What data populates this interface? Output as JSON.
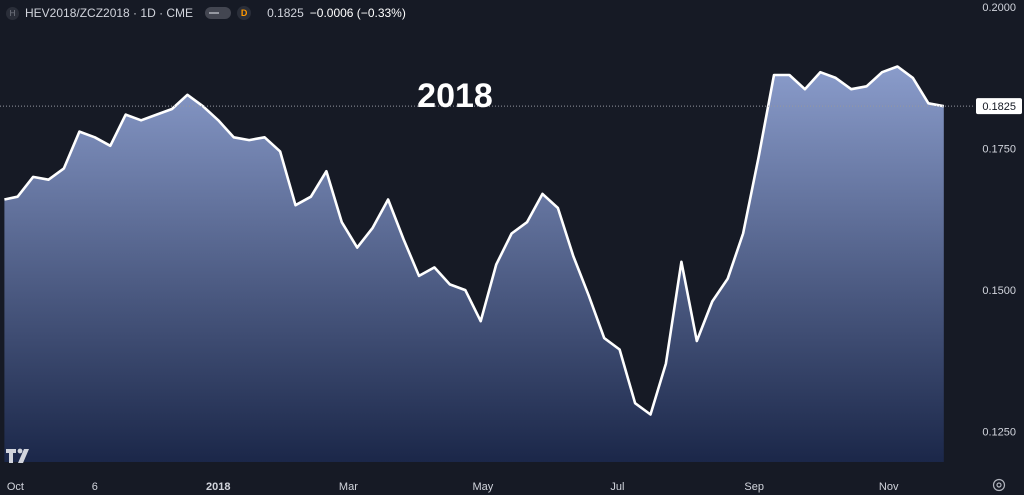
{
  "legend": {
    "symbol_icon": "H",
    "symbol": "HEV2018/ZCZ2018 · 1D · CME",
    "visibility_icon": "eye-toggle-icon",
    "badge": "D",
    "last": "0.1825",
    "change": "−0.0006 (−0.33%)"
  },
  "colors": {
    "background": "#161a25",
    "line": "#ffffff",
    "area_top": "#8a9ccb",
    "area_bottom": "#1b2749",
    "text": "#d1d4dc",
    "change_text": "#ffffff"
  },
  "chart_data": {
    "type": "area",
    "title": "2018",
    "xlabel": "",
    "ylabel": "",
    "grid": false,
    "ylim": [
      0.1235,
      0.2002
    ],
    "y_ticks": [
      "0.2000",
      "0.1750",
      "0.1500",
      "0.1250"
    ],
    "last_value_label": "0.1825",
    "x_ticks": [
      "Oct",
      "6",
      "2018",
      "Mar",
      "May",
      "Jul",
      "Sep",
      "Nov"
    ],
    "series": [
      {
        "x": [
          "2017-09-26",
          "2017-10-02",
          "2017-10-09",
          "2017-10-16",
          "2017-10-23",
          "2017-10-30",
          "2017-11-06",
          "2017-11-13",
          "2017-11-20",
          "2017-11-27",
          "2017-12-04",
          "2017-12-11",
          "2017-12-18",
          "2017-12-25",
          "2018-01-01",
          "2018-01-08",
          "2018-01-15",
          "2018-01-22",
          "2018-01-29",
          "2018-02-05",
          "2018-02-12",
          "2018-02-19",
          "2018-02-26",
          "2018-03-05",
          "2018-03-12",
          "2018-03-19",
          "2018-03-26",
          "2018-04-02",
          "2018-04-09",
          "2018-04-16",
          "2018-04-23",
          "2018-04-30",
          "2018-05-07",
          "2018-05-14",
          "2018-05-21",
          "2018-05-28",
          "2018-06-04",
          "2018-06-11",
          "2018-06-18",
          "2018-06-25",
          "2018-07-02",
          "2018-07-09",
          "2018-07-16",
          "2018-07-23",
          "2018-07-30",
          "2018-08-06",
          "2018-08-13",
          "2018-08-20",
          "2018-08-27",
          "2018-09-03",
          "2018-09-10",
          "2018-09-17",
          "2018-09-24",
          "2018-10-01",
          "2018-10-08",
          "2018-10-15",
          "2018-10-22",
          "2018-10-29",
          "2018-11-05",
          "2018-11-12",
          "2018-11-19",
          "2018-11-26"
        ],
        "values": [
          0.166,
          0.1665,
          0.17,
          0.1695,
          0.1715,
          0.178,
          0.177,
          0.1755,
          0.181,
          0.18,
          0.181,
          0.182,
          0.1845,
          0.1825,
          0.18,
          0.177,
          0.1765,
          0.177,
          0.1745,
          0.165,
          0.1665,
          0.171,
          0.162,
          0.1575,
          0.161,
          0.166,
          0.159,
          0.1525,
          0.154,
          0.151,
          0.15,
          0.1445,
          0.1545,
          0.16,
          0.162,
          0.167,
          0.1645,
          0.156,
          0.149,
          0.1415,
          0.1395,
          0.13,
          0.128,
          0.137,
          0.155,
          0.141,
          0.148,
          0.152,
          0.16,
          0.1735,
          0.188,
          0.188,
          0.1855,
          0.1885,
          0.1875,
          0.1855,
          0.186,
          0.1885,
          0.1895,
          0.1875,
          0.183,
          0.1825
        ]
      }
    ]
  }
}
